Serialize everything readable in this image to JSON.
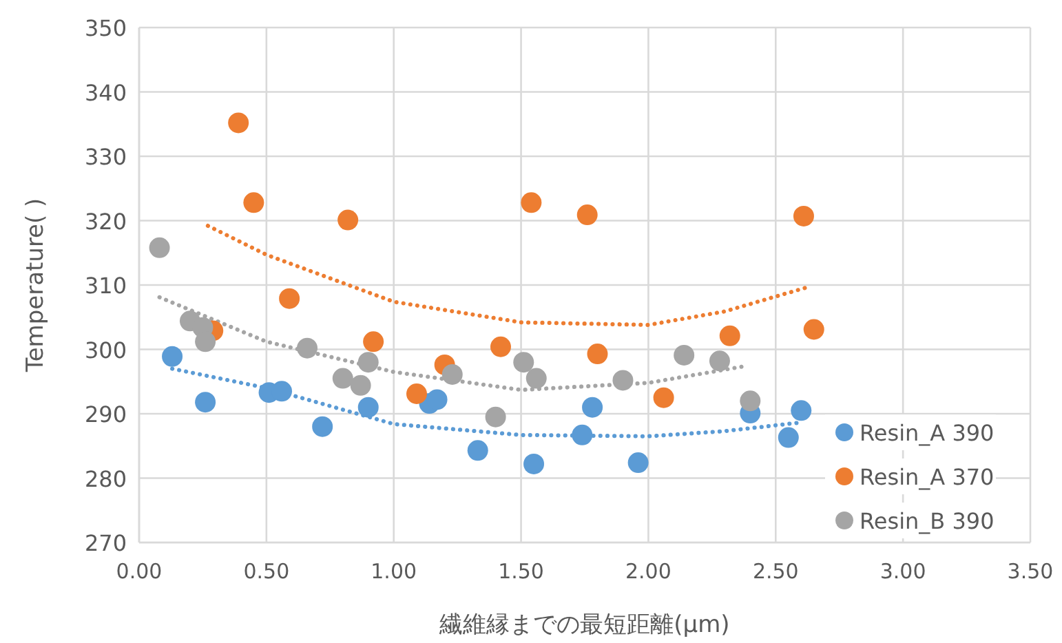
{
  "chart_data": {
    "type": "scatter",
    "xlabel": "繊維縁までの最短距離(μm)",
    "ylabel": "Temperature(  )",
    "xlim": [
      0,
      3.5
    ],
    "ylim": [
      270,
      350
    ],
    "xticks": [
      {
        "value": 0,
        "label": "0.00"
      },
      {
        "value": 0.5,
        "label": "0.50"
      },
      {
        "value": 1,
        "label": "1.00"
      },
      {
        "value": 1.5,
        "label": "1.50"
      },
      {
        "value": 2,
        "label": "2.00"
      },
      {
        "value": 2.5,
        "label": "2.50"
      },
      {
        "value": 3,
        "label": "3.00"
      },
      {
        "value": 3.5,
        "label": "3.50"
      }
    ],
    "yticks": [
      270,
      280,
      290,
      300,
      310,
      320,
      330,
      340,
      350
    ],
    "grid": true,
    "legend": "right",
    "marker": "circle",
    "series": [
      {
        "name": "Resin_A 390",
        "color": "#5b9bd5",
        "x": [
          0.13,
          0.26,
          0.51,
          0.56,
          0.72,
          0.9,
          1.14,
          1.17,
          1.33,
          1.55,
          1.74,
          1.78,
          1.96,
          2.4,
          2.55,
          2.6
        ],
        "values": [
          298.9,
          291.8,
          293.3,
          293.5,
          288.0,
          291.0,
          291.6,
          292.2,
          284.3,
          282.2,
          286.7,
          291.0,
          282.4,
          290.1,
          286.3,
          290.5
        ]
      },
      {
        "name": "Resin_A 370",
        "color": "#ed7d31",
        "x": [
          0.39,
          0.45,
          0.29,
          0.59,
          0.82,
          0.92,
          1.09,
          1.2,
          1.42,
          1.54,
          1.76,
          1.8,
          2.06,
          2.32,
          2.61,
          2.65
        ],
        "values": [
          335.2,
          322.8,
          302.9,
          307.9,
          320.1,
          301.2,
          293.1,
          297.6,
          300.4,
          322.8,
          320.9,
          299.3,
          292.5,
          302.1,
          320.7,
          303.1
        ]
      },
      {
        "name": "Resin_B 390",
        "color": "#a5a5a5",
        "x": [
          0.08,
          0.2,
          0.25,
          0.26,
          0.66,
          0.8,
          0.87,
          0.9,
          1.23,
          1.4,
          1.51,
          1.56,
          1.9,
          2.14,
          2.28,
          2.4
        ],
        "values": [
          315.8,
          304.4,
          303.4,
          301.2,
          300.2,
          295.5,
          294.4,
          298.0,
          296.1,
          289.5,
          298.0,
          295.5,
          295.2,
          299.1,
          298.2,
          292.0
        ]
      },
      {
        "type": "line",
        "line_style": "dotted",
        "marker": "none",
        "color": "#5b9bd5",
        "x": [
          0.13,
          0.5,
          1.0,
          1.5,
          2.0,
          2.3,
          2.59
        ],
        "values": [
          297.0,
          294.0,
          288.4,
          286.7,
          286.5,
          287.3,
          288.6
        ]
      },
      {
        "type": "line",
        "line_style": "dotted",
        "marker": "none",
        "color": "#ed7d31",
        "x": [
          0.27,
          0.5,
          1.0,
          1.5,
          2.0,
          2.3,
          2.62
        ],
        "values": [
          319.2,
          314.7,
          307.4,
          304.2,
          303.8,
          305.9,
          309.6
        ]
      },
      {
        "type": "line",
        "line_style": "dotted",
        "marker": "none",
        "color": "#a5a5a5",
        "x": [
          0.08,
          0.5,
          1.0,
          1.5,
          2.0,
          2.38
        ],
        "values": [
          308.1,
          301.2,
          296.5,
          293.7,
          294.8,
          297.4
        ]
      }
    ]
  }
}
